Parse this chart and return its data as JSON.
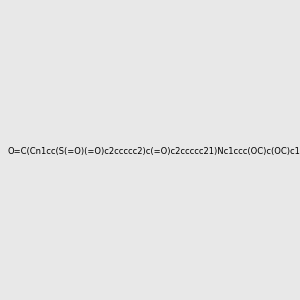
{
  "smiles": "O=C(Cn1cc(S(=O)(=O)c2ccccc2)c(=O)c2ccccc21)Nc1ccc(OC)c(OC)c1",
  "bg_color": "#e8e8e8",
  "fig_width": 3.0,
  "fig_height": 3.0,
  "dpi": 100
}
